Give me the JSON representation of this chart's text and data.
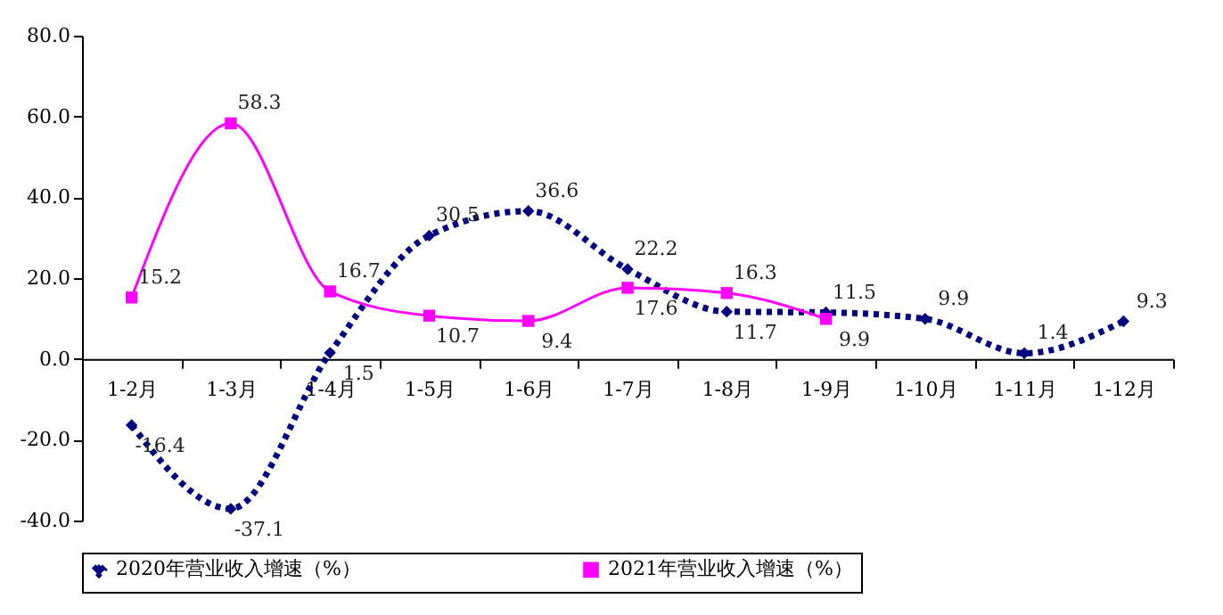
{
  "chart_data": {
    "type": "line",
    "categories": [
      "1-2月",
      "1-3月",
      "1-4月",
      "1-5月",
      "1-6月",
      "1-7月",
      "1-8月",
      "1-9月",
      "1-10月",
      "1-11月",
      "1-12月"
    ],
    "series": [
      {
        "name": "2020年营业收入增速（%）",
        "color": "#000080",
        "marker": "diamond",
        "line_style": "dotted",
        "values": [
          -16.4,
          -37.1,
          1.5,
          30.5,
          36.6,
          22.2,
          11.7,
          11.5,
          9.9,
          1.4,
          9.3
        ]
      },
      {
        "name": "2021年营业收入增速（%）",
        "color": "#ff00ff",
        "marker": "square",
        "line_style": "solid",
        "values": [
          15.2,
          58.3,
          16.7,
          10.7,
          9.4,
          17.6,
          16.3,
          9.9,
          null,
          null,
          null
        ]
      }
    ],
    "ylim": [
      -40,
      80
    ],
    "yticks": [
      {
        "value": -40,
        "label": "-40.0"
      },
      {
        "value": -20,
        "label": "-20.0"
      },
      {
        "value": 0,
        "label": "0.0"
      },
      {
        "value": 20,
        "label": "20.0"
      },
      {
        "value": 40,
        "label": "40.0"
      },
      {
        "value": 60,
        "label": "60.0"
      },
      {
        "value": 80,
        "label": "80.0"
      }
    ],
    "data_labels": true,
    "legend": "bottom"
  }
}
